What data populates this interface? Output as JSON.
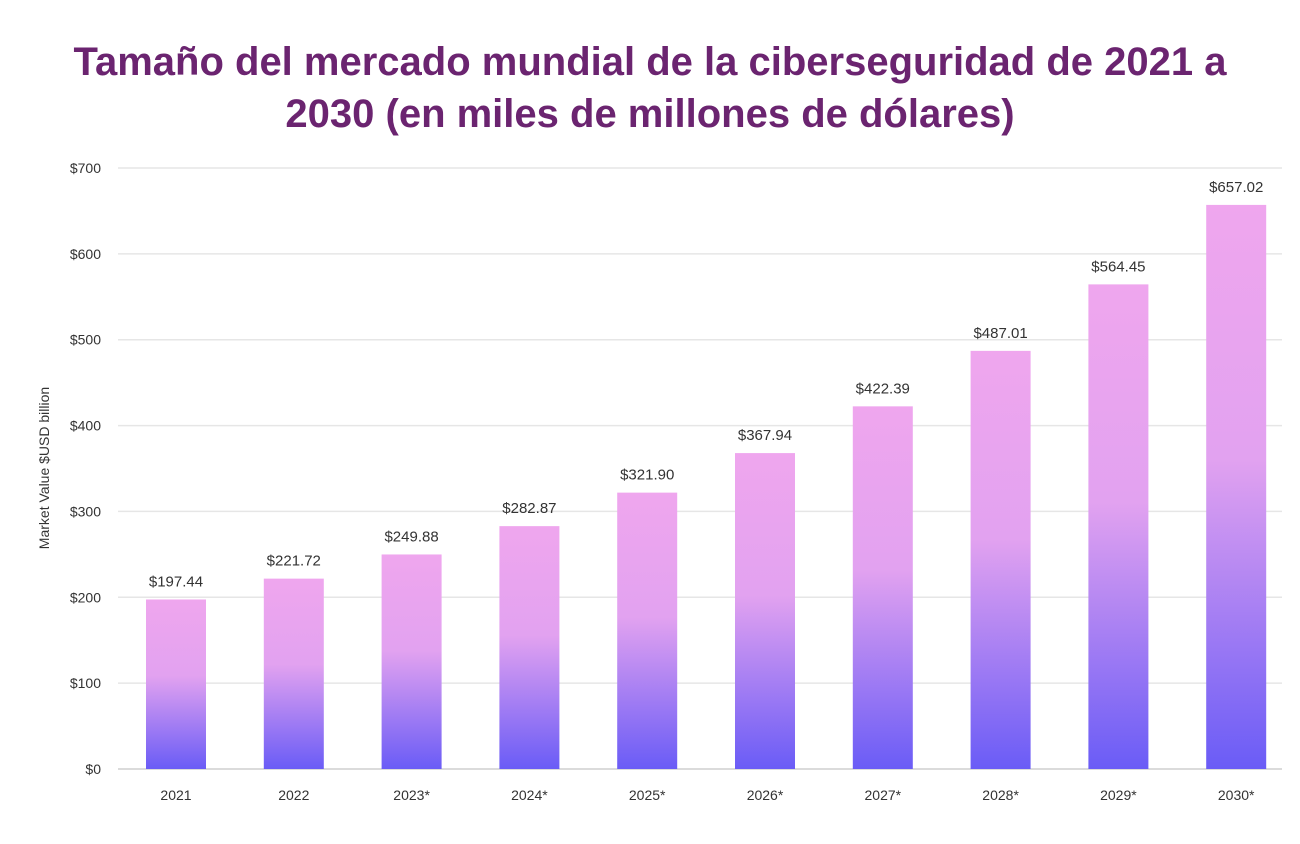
{
  "title_line1": "Tamaño del mercado mundial de la ciberseguridad de 2021 a",
  "title_line2": "2030 (en miles de millones de dólares)",
  "colors": {
    "title": "#6b2470",
    "bar_top": "#efa6ee",
    "bar_mid": "#e2a2f0",
    "bar_bottom": "#6a5cf6",
    "grid": "#e6e6e6",
    "text": "#333333"
  },
  "chart_data": {
    "type": "bar",
    "title": "Tamaño del mercado mundial de la ciberseguridad de 2021 a 2030 (en miles de millones de dólares)",
    "xlabel": "",
    "ylabel": "Market Value $USD billion",
    "ylim": [
      0,
      700
    ],
    "yticks": [
      0,
      100,
      200,
      300,
      400,
      500,
      600,
      700
    ],
    "ytick_labels": [
      "$0",
      "$100",
      "$200",
      "$300",
      "$400",
      "$500",
      "$600",
      "$700"
    ],
    "grid": true,
    "categories": [
      "2021",
      "2022",
      "2023*",
      "2024*",
      "2025*",
      "2026*",
      "2027*",
      "2028*",
      "2029*",
      "2030*"
    ],
    "values": [
      197.44,
      221.72,
      249.88,
      282.87,
      321.9,
      367.94,
      422.39,
      487.01,
      564.45,
      657.02
    ],
    "data_labels": [
      "$197.44",
      "$221.72",
      "$249.88",
      "$282.87",
      "$321.90",
      "$367.94",
      "$422.39",
      "$487.01",
      "$564.45",
      "$657.02"
    ]
  }
}
